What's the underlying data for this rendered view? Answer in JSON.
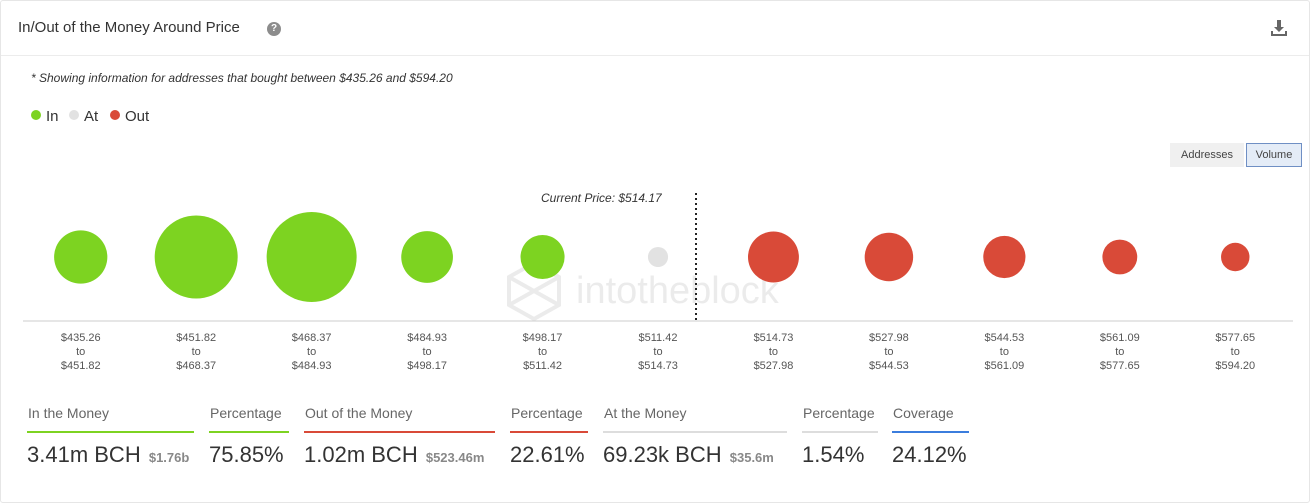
{
  "header": {
    "title": "In/Out of the Money Around Price"
  },
  "note": "* Showing information for addresses that bought between $435.26 and $594.20",
  "legend": [
    {
      "label": "In",
      "color": "#7dd321"
    },
    {
      "label": "At",
      "color": "#e2e2e2"
    },
    {
      "label": "Out",
      "color": "#d94a38"
    }
  ],
  "toggles": {
    "addresses": "Addresses",
    "volume": "Volume",
    "active": "Volume"
  },
  "watermark": "intotheblock",
  "chart_data": {
    "type": "bubble",
    "title": "",
    "current_price_label": "Current Price: $514.17",
    "current_price": 514.17,
    "size_metric": "Volume",
    "bins": [
      {
        "from": "$435.26",
        "to": "$451.82",
        "label_to": "to",
        "status": "In",
        "relative_volume": 0.35
      },
      {
        "from": "$451.82",
        "to": "$468.37",
        "label_to": "to",
        "status": "In",
        "relative_volume": 0.85
      },
      {
        "from": "$468.37",
        "to": "$484.93",
        "label_to": "to",
        "status": "In",
        "relative_volume": 1.0
      },
      {
        "from": "$484.93",
        "to": "$498.17",
        "label_to": "to",
        "status": "In",
        "relative_volume": 0.33
      },
      {
        "from": "$498.17",
        "to": "$511.42",
        "label_to": "to",
        "status": "In",
        "relative_volume": 0.24
      },
      {
        "from": "$511.42",
        "to": "$514.73",
        "label_to": "to",
        "status": "At",
        "relative_volume": 0.05
      },
      {
        "from": "$514.73",
        "to": "$527.98",
        "label_to": "to",
        "status": "Out",
        "relative_volume": 0.32
      },
      {
        "from": "$527.98",
        "to": "$544.53",
        "label_to": "to",
        "status": "Out",
        "relative_volume": 0.29
      },
      {
        "from": "$544.53",
        "to": "$561.09",
        "label_to": "to",
        "status": "Out",
        "relative_volume": 0.22
      },
      {
        "from": "$561.09",
        "to": "$577.65",
        "label_to": "to",
        "status": "Out",
        "relative_volume": 0.15
      },
      {
        "from": "$577.65",
        "to": "$594.20",
        "label_to": "to",
        "status": "Out",
        "relative_volume": 0.1
      }
    ],
    "status_colors": {
      "In": "#7dd321",
      "At": "#e2e2e2",
      "Out": "#d94a38"
    }
  },
  "stats": [
    {
      "label": "In the Money",
      "value": "3.41m BCH",
      "sub": "$1.76b",
      "color": "#7dd321"
    },
    {
      "label": "Percentage",
      "value": "75.85%",
      "sub": "",
      "color": "#7dd321"
    },
    {
      "label": "Out of the Money",
      "value": "1.02m BCH",
      "sub": "$523.46m",
      "color": "#d94a38"
    },
    {
      "label": "Percentage",
      "value": "22.61%",
      "sub": "",
      "color": "#d94a38"
    },
    {
      "label": "At the Money",
      "value": "69.23k BCH",
      "sub": "$35.6m",
      "color": "#dddddd"
    },
    {
      "label": "Percentage",
      "value": "1.54%",
      "sub": "",
      "color": "#dddddd"
    },
    {
      "label": "Coverage",
      "value": "24.12%",
      "sub": "",
      "color": "#3b7ddd"
    }
  ]
}
